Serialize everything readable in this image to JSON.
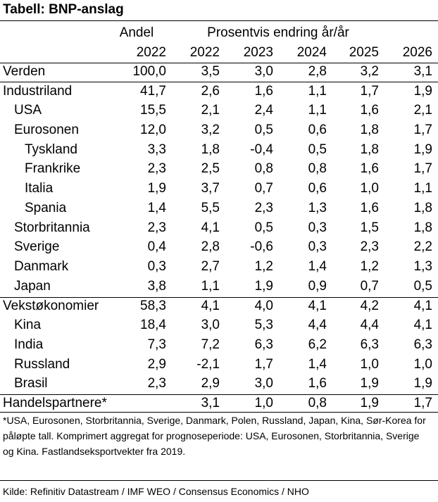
{
  "title": "Tabell: BNP-anslag",
  "header": {
    "andel": "Andel",
    "pct_change": "Prosentvis endring år/år",
    "years": [
      "2022",
      "2022",
      "2023",
      "2024",
      "2025",
      "2026"
    ]
  },
  "rows": [
    {
      "label": "Verden",
      "indent": 0,
      "values": [
        "100,0",
        "3,5",
        "3,0",
        "2,8",
        "3,2",
        "3,1"
      ]
    },
    {
      "label": "Industriland",
      "indent": 0,
      "values": [
        "41,7",
        "2,6",
        "1,6",
        "1,1",
        "1,7",
        "1,9"
      ]
    },
    {
      "label": "USA",
      "indent": 1,
      "values": [
        "15,5",
        "2,1",
        "2,4",
        "1,1",
        "1,6",
        "2,1"
      ]
    },
    {
      "label": "Eurosonen",
      "indent": 1,
      "values": [
        "12,0",
        "3,2",
        "0,5",
        "0,6",
        "1,8",
        "1,7"
      ]
    },
    {
      "label": "Tyskland",
      "indent": 2,
      "values": [
        "3,3",
        "1,8",
        "-0,4",
        "0,5",
        "1,8",
        "1,9"
      ]
    },
    {
      "label": "Frankrike",
      "indent": 2,
      "values": [
        "2,3",
        "2,5",
        "0,8",
        "0,8",
        "1,6",
        "1,7"
      ]
    },
    {
      "label": "Italia",
      "indent": 2,
      "values": [
        "1,9",
        "3,7",
        "0,7",
        "0,6",
        "1,0",
        "1,1"
      ]
    },
    {
      "label": "Spania",
      "indent": 2,
      "values": [
        "1,4",
        "5,5",
        "2,3",
        "1,3",
        "1,6",
        "1,8"
      ]
    },
    {
      "label": "Storbritannia",
      "indent": 1,
      "values": [
        "2,3",
        "4,1",
        "0,5",
        "0,3",
        "1,5",
        "1,8"
      ]
    },
    {
      "label": "Sverige",
      "indent": 1,
      "values": [
        "0,4",
        "2,8",
        "-0,6",
        "0,3",
        "2,3",
        "2,2"
      ]
    },
    {
      "label": "Danmark",
      "indent": 1,
      "values": [
        "0,3",
        "2,7",
        "1,2",
        "1,4",
        "1,2",
        "1,3"
      ]
    },
    {
      "label": "Japan",
      "indent": 1,
      "values": [
        "3,8",
        "1,1",
        "1,9",
        "0,9",
        "0,7",
        "0,5"
      ]
    },
    {
      "label": "Vekstøkonomier",
      "indent": 0,
      "values": [
        "58,3",
        "4,1",
        "4,0",
        "4,1",
        "4,2",
        "4,1"
      ]
    },
    {
      "label": "Kina",
      "indent": 1,
      "values": [
        "18,4",
        "3,0",
        "5,3",
        "4,4",
        "4,4",
        "4,1"
      ]
    },
    {
      "label": "India",
      "indent": 1,
      "values": [
        "7,3",
        "7,2",
        "6,3",
        "6,2",
        "6,3",
        "6,3"
      ]
    },
    {
      "label": "Russland",
      "indent": 1,
      "values": [
        "2,9",
        "-2,1",
        "1,7",
        "1,4",
        "1,0",
        "1,0"
      ]
    },
    {
      "label": "Brasil",
      "indent": 1,
      "values": [
        "2,3",
        "2,9",
        "3,0",
        "1,6",
        "1,9",
        "1,9"
      ]
    },
    {
      "label": "Handelspartnere*",
      "indent": 0,
      "values": [
        "",
        "3,1",
        "1,0",
        "0,8",
        "1,9",
        "1,7"
      ]
    }
  ],
  "footnote": "*USA, Eurosonen, Storbritannia, Sverige, Danmark, Polen, Russland, Japan, Kina, Sør-Korea for påløpte tall. Komprimert aggregat for prognoseperiode: USA, Eurosonen, Storbritannia, Sverige og Kina. Fastlandseksportvekter fra 2019.",
  "source": "Kilde: Refinitiv Datastream / IMF WEO / Consensus Economics / NHO"
}
